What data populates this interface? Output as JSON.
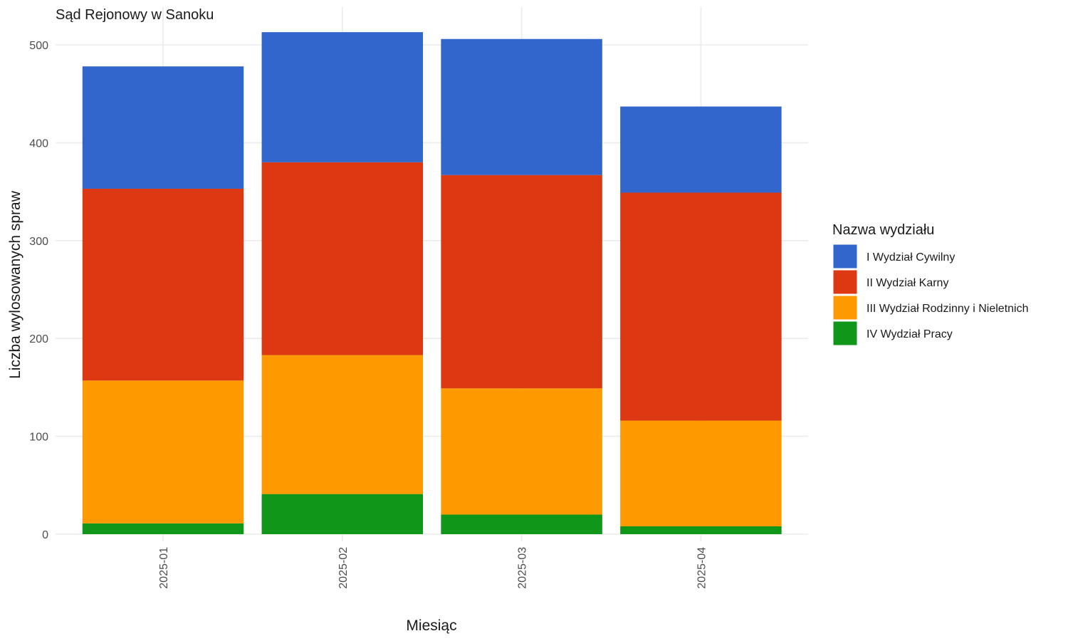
{
  "chart_data": {
    "type": "bar",
    "stacked": true,
    "title": "Sąd Rejonowy w Sanoku",
    "xlabel": "Miesiąc",
    "ylabel": "Liczba wylosowanych spraw",
    "categories": [
      "2025-01",
      "2025-02",
      "2025-03",
      "2025-04"
    ],
    "ylim": [
      0,
      515
    ],
    "yticks": [
      0,
      100,
      200,
      300,
      400,
      500
    ],
    "grid": true,
    "legend_title": "Nazwa wydziału",
    "legend_position": "right",
    "series": [
      {
        "name": "IV Wydział Pracy",
        "color": "#109618",
        "values": [
          11,
          41,
          20,
          8
        ]
      },
      {
        "name": "III Wydział Rodzinny i Nieletnich",
        "color": "#ff9900",
        "values": [
          146,
          142,
          129,
          108
        ]
      },
      {
        "name": "II Wydział Karny",
        "color": "#dc3912",
        "values": [
          196,
          197,
          218,
          233
        ]
      },
      {
        "name": "I Wydział Cywilny",
        "color": "#3366cc",
        "values": [
          125,
          133,
          139,
          88
        ]
      }
    ],
    "legend_order": [
      "I Wydział Cywilny",
      "II Wydział Karny",
      "III Wydział Rodzinny i Nieletnich",
      "IV Wydział Pracy"
    ]
  }
}
